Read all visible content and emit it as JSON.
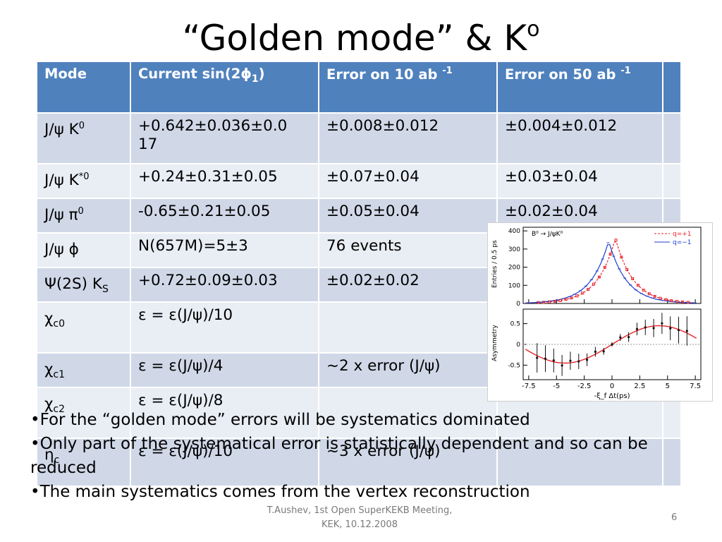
{
  "slide": {
    "title": "“Golden mode” & K",
    "title_sup": "o"
  },
  "table": {
    "headers": {
      "mode": "Mode",
      "current_main": "Current sin(2",
      "current_phi": "ϕ",
      "current_sub": "1",
      "current_close": ")",
      "err10": "Error on 10 ab",
      "err10_sup": "-1",
      "err50": "Error on 50 ab",
      "err50_sup": "-1"
    },
    "rows": [
      {
        "mode": "J/ψ K",
        "mode_sup": "0",
        "mode_sub": "",
        "current": "+0.642±0.036±0.0 17",
        "err10": "±0.008±0.012",
        "err50": "±0.004±0.012"
      },
      {
        "mode": "J/ψ K",
        "mode_sup": "*0",
        "mode_sub": "",
        "current": "+0.24±0.31±0.05",
        "err10": "±0.07±0.04",
        "err50": "±0.03±0.04"
      },
      {
        "mode": "J/ψ π",
        "mode_sup": "0",
        "mode_sub": "",
        "current": "-0.65±0.21±0.05",
        "err10": "±0.05±0.04",
        "err50": "±0.02±0.04"
      },
      {
        "mode": "J/ψ ϕ",
        "mode_sup": "",
        "mode_sub": "",
        "current": "N(657M)=5±3",
        "err10": "76 events",
        "err50": ""
      },
      {
        "mode": "Ψ(2S) K",
        "mode_sup": "",
        "mode_sub": "S",
        "current": "+0.72±0.09±0.03",
        "err10": "±0.02±0.02",
        "err50": ""
      },
      {
        "mode": "χ",
        "mode_sup": "",
        "mode_sub": "c0",
        "current": "ε = ε(J/ψ)/10",
        "err10": "",
        "err50": ""
      },
      {
        "mode": "χ",
        "mode_sup": "",
        "mode_sub": "c1",
        "current": "ε = ε(J/ψ)/4",
        "err10": "~2 x error (J/ψ)",
        "err50": ""
      },
      {
        "mode": "χ",
        "mode_sup": "",
        "mode_sub": "c2",
        "current": "ε = ε(J/ψ)/8",
        "err10": "",
        "err50": ""
      },
      {
        "mode": "η",
        "mode_sup": "",
        "mode_sub": "c",
        "current": "ε = ε(J/ψ)/10",
        "err10": "~3 x error (J/ψ)",
        "err50": ""
      }
    ]
  },
  "figure": {
    "legend_title": "B⁰ → J/ψK⁰",
    "legend_q_plus": "q=+1",
    "legend_q_minus": "q=−1",
    "top_ylabel": "Entries / 0.5 ps",
    "bottom_ylabel": "Asymmetry",
    "xlabel": "-ξ_f Δt(ps)",
    "top_yticks": [
      "400",
      "300",
      "200",
      "100",
      "0"
    ],
    "bottom_yticks": [
      "0.5",
      "0",
      "-0.5"
    ],
    "xticks": [
      "-7.5",
      "-5",
      "-2.5",
      "0",
      "2.5",
      "5",
      "7.5"
    ],
    "colors": {
      "q_plus": "#e8242b",
      "q_minus": "#1f3fcf",
      "asym": "#111111",
      "fit": "#e8242b"
    }
  },
  "bullets": [
    "•For the “golden mode” errors will be systematics dominated",
    "•Only part of the systematical error is statistically dependent and so can be reduced",
    "•The main systematics comes from the vertex reconstruction"
  ],
  "footer": {
    "line1": "T.Aushev, 1st Open SuperKEKB Meeting,",
    "line2": "KEK, 10.12.2008",
    "page": "6"
  }
}
